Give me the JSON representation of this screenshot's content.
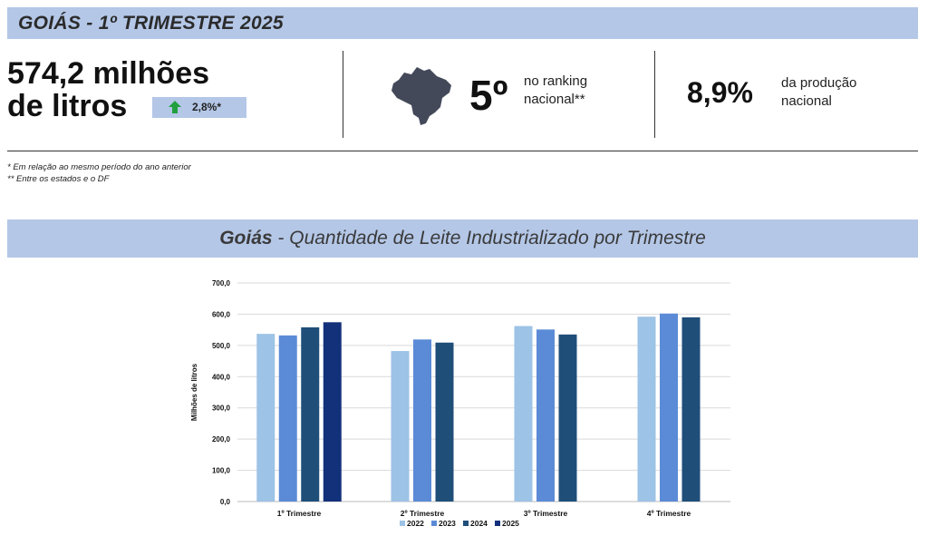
{
  "header": {
    "title": "GOIÁS - 1º TRIMESTRE 2025"
  },
  "kpis": {
    "volume_line1": "574,2 milhões",
    "volume_line2": "de litros",
    "growth": "2,8%*",
    "rank": "5º",
    "rank_line1": "no ranking",
    "rank_line2": "nacional**",
    "share": "8,9%",
    "share_line1": "da produção",
    "share_line2": "nacional"
  },
  "notes": {
    "note1": "* Em relação ao mesmo período do ano anterior",
    "note2": "** Entre os estados e o DF"
  },
  "chart_title": {
    "bold": "Goiás",
    "rest": " - Quantidade de Leite Industrializado por Trimestre"
  },
  "colors": {
    "banner": "#b4c7e7",
    "arrow": "#22a040",
    "map": "#44495a"
  },
  "chart_data": {
    "type": "bar",
    "ylabel": "Milhões de litros",
    "ylim": [
      0,
      700
    ],
    "yticks": [
      "0,0",
      "100,0",
      "200,0",
      "300,0",
      "400,0",
      "500,0",
      "600,0",
      "700,0"
    ],
    "categories": [
      "1º Trimestre",
      "2º Trimestre",
      "3º Trimestre",
      "4º Trimestre"
    ],
    "series": [
      {
        "name": "2022",
        "color": "#9dc3e6",
        "values": [
          537,
          482,
          562,
          592
        ]
      },
      {
        "name": "2023",
        "color": "#5b8bd6",
        "values": [
          532,
          519,
          551,
          602
        ]
      },
      {
        "name": "2024",
        "color": "#1f4e79",
        "values": [
          558,
          509,
          535,
          590
        ]
      },
      {
        "name": "2025",
        "color": "#13317a",
        "values": [
          574.2,
          null,
          null,
          null
        ]
      }
    ],
    "grid": true,
    "legend": "bottom"
  }
}
